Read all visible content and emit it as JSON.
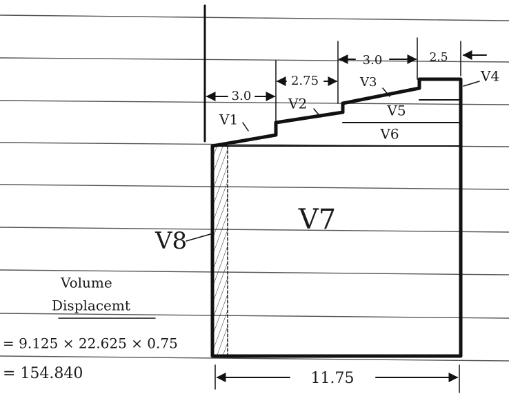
{
  "dimensions": {
    "top": [
      "3.0",
      "2.75",
      "3.0",
      "2.5"
    ],
    "bottom": "11.75"
  },
  "volumes": [
    "V1",
    "V2",
    "V3",
    "V4",
    "V5",
    "V6",
    "V7",
    "V8"
  ],
  "notes": {
    "heading": [
      "Volume",
      "Displacemt"
    ],
    "formula": "= 9.125 × 22.625 × 0.75",
    "result": "= 154.840"
  }
}
